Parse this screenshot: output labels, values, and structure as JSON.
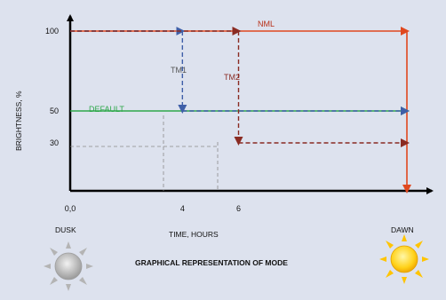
{
  "chart_data": {
    "type": "line",
    "title": "",
    "xlabel": "TIME, HOURS",
    "ylabel": "BRIGHTNESS, %",
    "xlim": [
      0,
      12
    ],
    "ylim": [
      0,
      110
    ],
    "x_tick_labels": [
      {
        "value": 0,
        "label": "0,0"
      },
      {
        "value": 4,
        "label": "4"
      },
      {
        "value": 6,
        "label": "6"
      }
    ],
    "y_tick_labels": [
      {
        "value": 100,
        "label": "100"
      },
      {
        "value": 50,
        "label": "50"
      },
      {
        "value": 30,
        "label": "30"
      }
    ],
    "x_end_labels": {
      "start": "DUSK",
      "end": "DAWN"
    },
    "caption": "GRAPHICAL REPRESENTATION OF MODE",
    "series": [
      {
        "name": "NML",
        "color": "#e0481f",
        "style": "solid",
        "points": [
          [
            0,
            100
          ],
          [
            12,
            100
          ],
          [
            12,
            0
          ]
        ]
      },
      {
        "name": "DEFAULT",
        "color": "#2ea84a",
        "style": "solid",
        "points": [
          [
            0,
            50
          ],
          [
            12,
            50
          ]
        ]
      },
      {
        "name": "TM1",
        "color": "#3f5fa8",
        "style": "dashed",
        "points": [
          [
            0,
            100
          ],
          [
            4,
            100
          ],
          [
            4,
            50
          ],
          [
            12,
            50
          ]
        ]
      },
      {
        "name": "TM2",
        "color": "#8a2b22",
        "style": "dashed",
        "points": [
          [
            0,
            100
          ],
          [
            6,
            100
          ],
          [
            6,
            30
          ],
          [
            12,
            30
          ]
        ]
      }
    ],
    "grid": false,
    "icons": {
      "dusk": "grey-sun-icon",
      "dawn": "yellow-sun-icon"
    }
  }
}
